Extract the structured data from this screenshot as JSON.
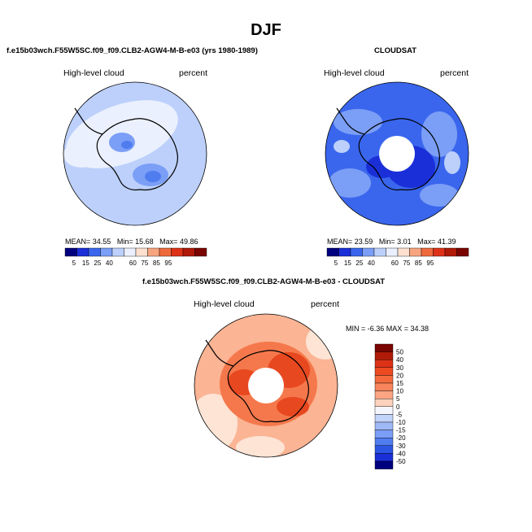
{
  "title": "DJF",
  "panels": [
    {
      "title": "f.e15b03wch.F55W5SC.f09_f09.CLB2-AGW4-M-B-e03 (yrs 1980-1989)",
      "variable": "High-level cloud",
      "units": "percent",
      "stats": {
        "mean_label": "MEAN=",
        "mean": "34.55",
        "min_label": "Min=",
        "min": "15.68",
        "max_label": "Max=",
        "max": "49.86"
      }
    },
    {
      "title": "CLOUDSAT",
      "variable": "High-level cloud",
      "units": "percent",
      "stats": {
        "mean_label": "MEAN=",
        "mean": "23.59",
        "min_label": "Min=",
        "min": "3.01",
        "max_label": "Max=",
        "max": "41.39"
      }
    },
    {
      "title": "f.e15b03wch.F55W5SC.f09_f09.CLB2-AGW4-M-B-e03 - CLOUDSAT",
      "variable": "High-level cloud",
      "units": "percent",
      "stats_text": "MIN =  -6.36 MAX =  34.38"
    }
  ],
  "colorbar_horizontal": {
    "labels": [
      "5",
      "15",
      "25",
      "40",
      "60",
      "75",
      "85",
      "95"
    ],
    "colors": [
      "#00007e",
      "#1a2fd8",
      "#3a66ee",
      "#7b9ef6",
      "#bcd0fb",
      "#eaf0fd",
      "#fde0d0",
      "#f7a57f",
      "#ee6a3d",
      "#dd3218",
      "#b01a08",
      "#7a0500"
    ]
  },
  "colorbar_vertical": {
    "labels": [
      "50",
      "40",
      "30",
      "20",
      "15",
      "10",
      "5",
      "0",
      "-5",
      "-10",
      "-15",
      "-20",
      "-30",
      "-40",
      "-50"
    ],
    "colors": [
      "#7a0500",
      "#b01a08",
      "#dd3218",
      "#ee4a22",
      "#f56a3d",
      "#f8855c",
      "#fba582",
      "#fdd2bc",
      "#f4f6fd",
      "#c3d4fb",
      "#9fb9f7",
      "#7b9ef6",
      "#4f7df0",
      "#2c55e4",
      "#1a2fd8",
      "#00007e"
    ]
  },
  "map_colors": {
    "model_base": "#bcd0fb",
    "model_light": "#eaf0fd",
    "model_mid": "#7b9ef6",
    "model_dark": "#4f7df0",
    "obs_base": "#3a66ee",
    "obs_dark": "#1a2fd8",
    "obs_light": "#7b9ef6",
    "obs_pale": "#bcd0fb",
    "diff_base": "#fbb494",
    "diff_mid": "#f5784c",
    "diff_dark": "#e8481f",
    "diff_pale": "#fde4d4"
  }
}
